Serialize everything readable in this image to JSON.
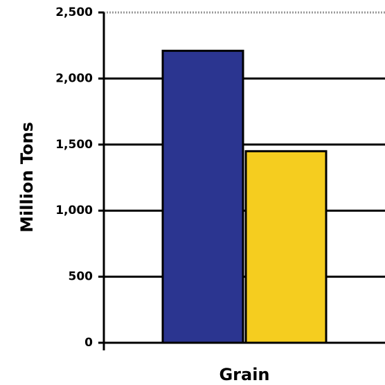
{
  "chart_data": {
    "type": "bar",
    "categories": [
      "Grain"
    ],
    "series": [
      {
        "values": [
          2210
        ],
        "color": "#2b3590"
      },
      {
        "values": [
          1450
        ],
        "color": "#f5cd1f"
      }
    ],
    "xlabel": "Grain",
    "ylabel": "Million Tons",
    "ylim": [
      0,
      2500
    ],
    "yticks": [
      {
        "value": 0,
        "label": "0"
      },
      {
        "value": 500,
        "label": "500"
      },
      {
        "value": 1000,
        "label": "1,000"
      },
      {
        "value": 1500,
        "label": "1,500"
      },
      {
        "value": 2000,
        "label": "2,000"
      },
      {
        "value": 2500,
        "label": "2,500"
      }
    ],
    "grid": true,
    "legend": "none"
  }
}
